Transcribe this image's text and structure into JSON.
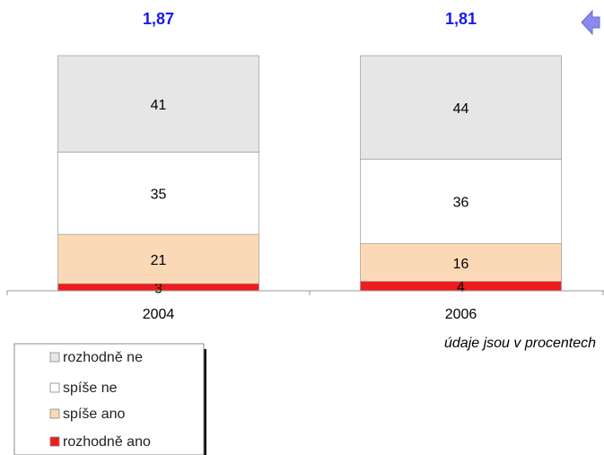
{
  "chart_data": {
    "type": "stacked_bar",
    "annotations": [
      "1,87",
      "1,81"
    ],
    "note": "údaje jsou v procentech",
    "categories": [
      "2004",
      "2006"
    ],
    "series": [
      {
        "name": "rozhodně ano",
        "color": "#ee1c1c",
        "values": [
          3,
          4
        ]
      },
      {
        "name": "spíše ano",
        "color": "#fcd9b6",
        "values": [
          21,
          16
        ]
      },
      {
        "name": "spíše ne",
        "color": "#ffffff",
        "values": [
          35,
          36
        ]
      },
      {
        "name": "rozhodně ne",
        "color": "#e6e6e6",
        "values": [
          41,
          44
        ]
      }
    ],
    "ylim": [
      0,
      100
    ]
  }
}
